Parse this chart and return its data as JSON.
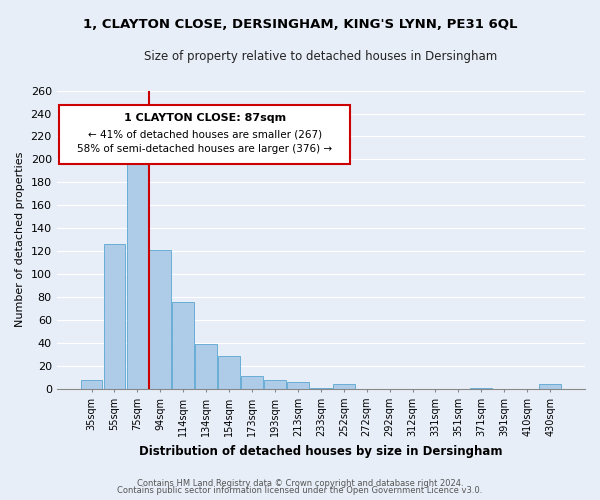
{
  "title": "1, CLAYTON CLOSE, DERSINGHAM, KING'S LYNN, PE31 6QL",
  "subtitle": "Size of property relative to detached houses in Dersingham",
  "xlabel": "Distribution of detached houses by size in Dersingham",
  "ylabel": "Number of detached properties",
  "bar_labels": [
    "35sqm",
    "55sqm",
    "75sqm",
    "94sqm",
    "114sqm",
    "134sqm",
    "154sqm",
    "173sqm",
    "193sqm",
    "213sqm",
    "233sqm",
    "252sqm",
    "272sqm",
    "292sqm",
    "312sqm",
    "331sqm",
    "351sqm",
    "371sqm",
    "391sqm",
    "410sqm",
    "430sqm"
  ],
  "bar_values": [
    8,
    126,
    219,
    121,
    76,
    39,
    29,
    11,
    8,
    6,
    1,
    4,
    0,
    0,
    0,
    0,
    0,
    1,
    0,
    0,
    4
  ],
  "bar_color": "#aecce8",
  "bar_edge_color": "#6aaed6",
  "vline_x": 2.5,
  "vline_color": "#cc0000",
  "annotation_title": "1 CLAYTON CLOSE: 87sqm",
  "annotation_line1": "← 41% of detached houses are smaller (267)",
  "annotation_line2": "58% of semi-detached houses are larger (376) →",
  "annotation_box_color": "#ffffff",
  "annotation_box_edge": "#cc0000",
  "ylim": [
    0,
    260
  ],
  "yticks": [
    0,
    20,
    40,
    60,
    80,
    100,
    120,
    140,
    160,
    180,
    200,
    220,
    240,
    260
  ],
  "footer1": "Contains HM Land Registry data © Crown copyright and database right 2024.",
  "footer2": "Contains public sector information licensed under the Open Government Licence v3.0.",
  "bg_color": "#e8eef8",
  "plot_bg_color": "#e8eef8"
}
